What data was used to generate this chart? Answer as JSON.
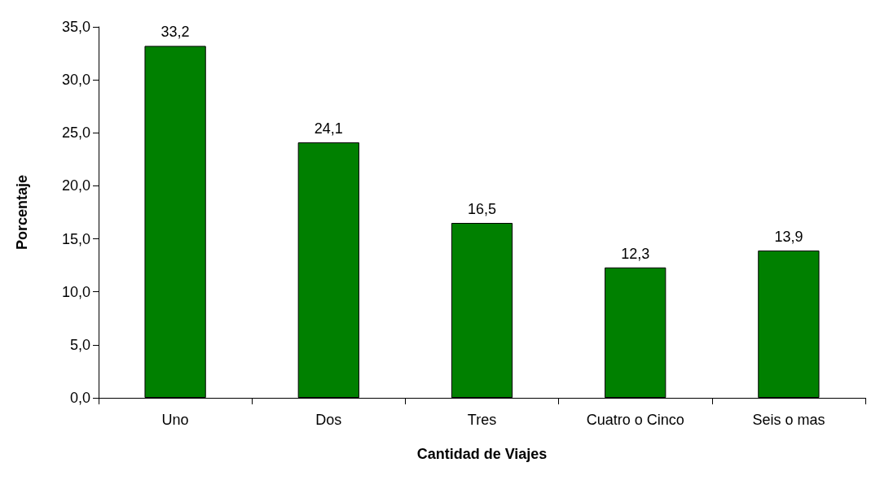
{
  "chart_data": {
    "type": "bar",
    "xlabel": "Cantidad de Viajes",
    "ylabel": "Porcentaje",
    "categories": [
      "Uno",
      "Dos",
      "Tres",
      "Cuatro o Cinco",
      "Seis o mas"
    ],
    "values": [
      33.2,
      24.1,
      16.5,
      12.3,
      13.9
    ],
    "value_labels": [
      "33,2",
      "24,1",
      "16,5",
      "12,3",
      "13,9"
    ],
    "color": "#008000",
    "ylim": [
      0,
      35
    ],
    "yticks": [
      {
        "value": 0,
        "label": "0,0"
      },
      {
        "value": 5,
        "label": "5,0"
      },
      {
        "value": 10,
        "label": "10,0"
      },
      {
        "value": 15,
        "label": "15,0"
      },
      {
        "value": 20,
        "label": "20,0"
      },
      {
        "value": 25,
        "label": "25,0"
      },
      {
        "value": 30,
        "label": "30,0"
      },
      {
        "value": 35,
        "label": "35,0"
      }
    ],
    "grid": false
  }
}
